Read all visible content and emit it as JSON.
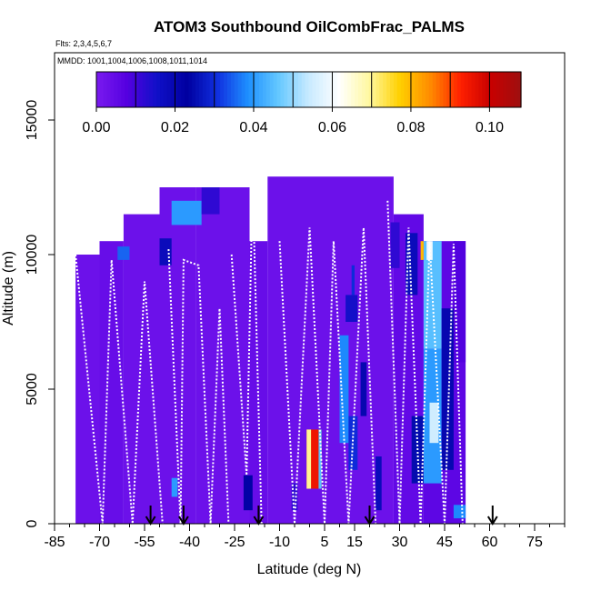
{
  "chart_data": {
    "type": "heatmap",
    "title": "ATOM3 Southbound OilCombFrac_PALMS",
    "flights_note": "Flts: 2,3,4,5,6,7",
    "dates_note": "MMDD: 1001,1004,1006,1008,1011,1014",
    "xlabel": "Latitude (deg N)",
    "ylabel": "Altitude (m)",
    "xlim": [
      -85,
      85
    ],
    "ylim": [
      0,
      17500
    ],
    "x_ticks": [
      -85,
      -70,
      -55,
      -40,
      -25,
      -10,
      5,
      15,
      30,
      45,
      60,
      75
    ],
    "y_ticks": [
      0,
      5000,
      10000,
      15000
    ],
    "colorbar": {
      "ticks": [
        0.0,
        0.02,
        0.04,
        0.06,
        0.08,
        0.1
      ],
      "tick_labels": [
        "0.00",
        "0.02",
        "0.04",
        "0.06",
        "0.08",
        "0.10"
      ],
      "range": [
        0.0,
        0.108
      ],
      "colors": [
        "#7a1bf0",
        "#5500e0",
        "#1010c8",
        "#0000a0",
        "#1030e0",
        "#1e90ff",
        "#64c8ff",
        "#c8eaff",
        "#ffffff",
        "#fff8a0",
        "#ffd000",
        "#ff8c00",
        "#ff2000",
        "#c80000",
        "#9e1010"
      ]
    },
    "background_value": 0.003,
    "cells": [
      {
        "x0": -78,
        "x1": -70,
        "y0": 0,
        "y1": 10000,
        "value": 0.003
      },
      {
        "x0": -70,
        "x1": -62,
        "y0": 0,
        "y1": 10500,
        "value": 0.004
      },
      {
        "x0": -62,
        "x1": -50,
        "y0": 0,
        "y1": 11500,
        "value": 0.003
      },
      {
        "x0": -50,
        "x1": -38,
        "y0": 0,
        "y1": 12500,
        "value": 0.003
      },
      {
        "x0": -38,
        "x1": -20,
        "y0": 0,
        "y1": 12500,
        "value": 0.003
      },
      {
        "x0": -20,
        "x1": -14,
        "y0": 0,
        "y1": 10500,
        "value": 0.004
      },
      {
        "x0": -14,
        "x1": 28,
        "y0": 0,
        "y1": 12900,
        "value": 0.003
      },
      {
        "x0": 28,
        "x1": 38,
        "y0": 0,
        "y1": 11500,
        "value": 0.005
      },
      {
        "x0": 38,
        "x1": 52,
        "y0": 0,
        "y1": 10500,
        "value": 0.006
      },
      {
        "x0": -64,
        "x1": -60,
        "y0": 9800,
        "y1": 10300,
        "value": 0.035
      },
      {
        "x0": -50,
        "x1": -46,
        "y0": 9600,
        "y1": 10600,
        "value": 0.018
      },
      {
        "x0": -46,
        "x1": -36,
        "y0": 11100,
        "y1": 12000,
        "value": 0.04
      },
      {
        "x0": -36,
        "x1": -30,
        "y0": 11500,
        "y1": 12500,
        "value": 0.012
      },
      {
        "x0": -46,
        "x1": -44,
        "y0": 1000,
        "y1": 1700,
        "value": 0.04
      },
      {
        "x0": -22,
        "x1": -19,
        "y0": 500,
        "y1": 1800,
        "value": 0.022
      },
      {
        "x0": -1,
        "x1": 4,
        "y0": 1300,
        "y1": 3500,
        "value": 0.095
      },
      {
        "x0": -1,
        "x1": 0.5,
        "y0": 1300,
        "y1": 3500,
        "value": 0.07
      },
      {
        "x0": 3,
        "x1": 4,
        "y0": 1300,
        "y1": 3500,
        "value": 0.045
      },
      {
        "x0": 10,
        "x1": 13,
        "y0": 3000,
        "y1": 7000,
        "value": 0.038
      },
      {
        "x0": 13,
        "x1": 16,
        "y0": 2000,
        "y1": 4000,
        "value": 0.03
      },
      {
        "x0": 12,
        "x1": 16,
        "y0": 7500,
        "y1": 8500,
        "value": 0.015
      },
      {
        "x0": 14,
        "x1": 15,
        "y0": 8500,
        "y1": 9600,
        "value": 0.03
      },
      {
        "x0": 17,
        "x1": 19,
        "y0": 4000,
        "y1": 6000,
        "value": 0.02
      },
      {
        "x0": 32,
        "x1": 36,
        "y0": 8500,
        "y1": 10800,
        "value": 0.018
      },
      {
        "x0": 34,
        "x1": 38,
        "y0": 1500,
        "y1": 4000,
        "value": 0.025
      },
      {
        "x0": 38,
        "x1": 44,
        "y0": 1500,
        "y1": 6500,
        "value": 0.04
      },
      {
        "x0": 38,
        "x1": 44,
        "y0": 6500,
        "y1": 10500,
        "value": 0.045
      },
      {
        "x0": 40,
        "x1": 43,
        "y0": 3000,
        "y1": 4500,
        "value": 0.055
      },
      {
        "x0": 39,
        "x1": 41,
        "y0": 9800,
        "y1": 10500,
        "value": 0.06
      },
      {
        "x0": 37,
        "x1": 38,
        "y0": 9800,
        "y1": 10500,
        "value": 0.08
      },
      {
        "x0": 44,
        "x1": 48,
        "y0": 2000,
        "y1": 8000,
        "value": 0.02
      },
      {
        "x0": 48,
        "x1": 52,
        "y0": 6000,
        "y1": 10500,
        "value": 0.008
      },
      {
        "x0": 48,
        "x1": 52,
        "y0": 200,
        "y1": 700,
        "value": 0.038
      },
      {
        "x0": 22,
        "x1": 24,
        "y0": 500,
        "y1": 2500,
        "value": 0.018
      },
      {
        "x0": -6,
        "x1": -4,
        "y0": 500,
        "y1": 1500,
        "value": 0.012
      },
      {
        "x0": 27,
        "x1": 30,
        "y0": 9500,
        "y1": 11200,
        "value": 0.012
      }
    ],
    "flight_profiles": [
      [
        [
          -78,
          10000
        ],
        [
          -69,
          0
        ],
        [
          -66,
          9800
        ],
        [
          -59,
          0
        ],
        [
          -55,
          9000
        ],
        [
          -49,
          0
        ]
      ],
      [
        [
          -47,
          10200
        ],
        [
          -43,
          0
        ],
        [
          -42,
          9800
        ],
        [
          -37,
          9600
        ],
        [
          -33,
          0
        ],
        [
          -30,
          8000
        ],
        [
          -27,
          0
        ]
      ],
      [
        [
          -26,
          10000
        ],
        [
          -21,
          1800
        ],
        [
          -19,
          12700
        ],
        [
          -16,
          0
        ]
      ],
      [
        [
          -10,
          10500
        ],
        [
          -5,
          0
        ],
        [
          0,
          11000
        ],
        [
          5,
          0
        ],
        [
          8,
          10500
        ],
        [
          13,
          0
        ],
        [
          18,
          11000
        ],
        [
          22,
          0
        ]
      ],
      [
        [
          26,
          12000
        ],
        [
          30,
          0
        ],
        [
          33,
          11000
        ],
        [
          37,
          0
        ],
        [
          40,
          10500
        ],
        [
          45,
          0
        ],
        [
          48,
          10400
        ],
        [
          51,
          0
        ]
      ]
    ],
    "arrows_latitude": [
      -53,
      -42,
      -17,
      20,
      61
    ]
  }
}
